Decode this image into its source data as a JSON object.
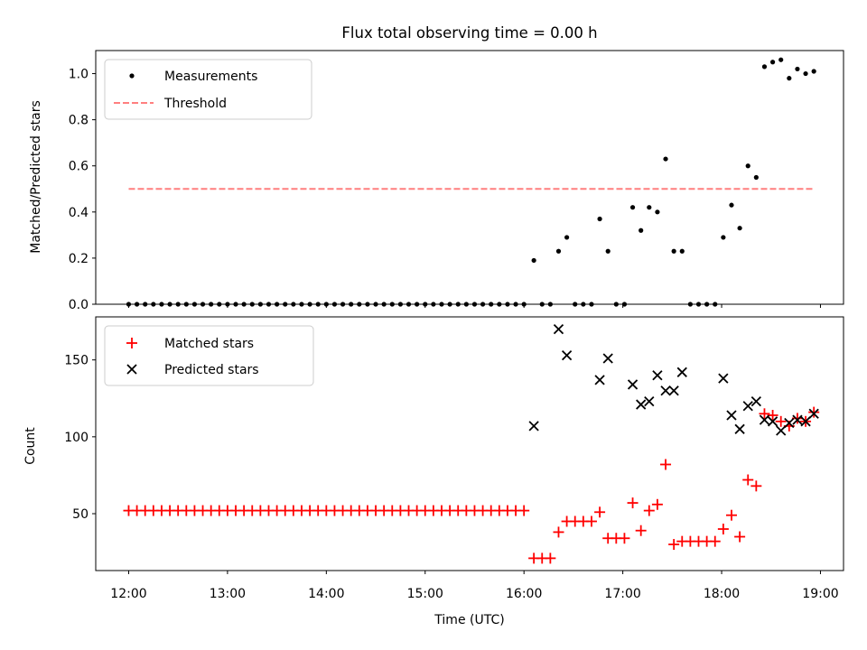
{
  "chart_data": [
    {
      "type": "scatter",
      "title": "Flux total observing time = 0.00 h",
      "ylabel": "Matched/Predicted stars",
      "xlim": [
        "11:40",
        "19:14"
      ],
      "ylim": [
        0,
        1.1
      ],
      "yticks": [
        "0.0",
        "0.2",
        "0.4",
        "0.6",
        "0.8",
        "1.0"
      ],
      "legend": {
        "placement": "top-left",
        "entries": [
          "Measurements",
          "Threshold"
        ]
      },
      "series": [
        {
          "name": "Measurements",
          "marker": "dot",
          "color": "#000000",
          "points": [
            [
              "12:00",
              0
            ],
            [
              "12:05",
              0
            ],
            [
              "12:10",
              0
            ],
            [
              "12:15",
              0
            ],
            [
              "12:20",
              0
            ],
            [
              "12:25",
              0
            ],
            [
              "12:30",
              0
            ],
            [
              "12:35",
              0
            ],
            [
              "12:40",
              0
            ],
            [
              "12:45",
              0
            ],
            [
              "12:50",
              0
            ],
            [
              "12:55",
              0
            ],
            [
              "13:00",
              0
            ],
            [
              "13:05",
              0
            ],
            [
              "13:10",
              0
            ],
            [
              "13:15",
              0
            ],
            [
              "13:20",
              0
            ],
            [
              "13:25",
              0
            ],
            [
              "13:30",
              0
            ],
            [
              "13:35",
              0
            ],
            [
              "13:40",
              0
            ],
            [
              "13:45",
              0
            ],
            [
              "13:50",
              0
            ],
            [
              "13:55",
              0
            ],
            [
              "14:00",
              0
            ],
            [
              "14:05",
              0
            ],
            [
              "14:10",
              0
            ],
            [
              "14:15",
              0
            ],
            [
              "14:20",
              0
            ],
            [
              "14:25",
              0
            ],
            [
              "14:30",
              0
            ],
            [
              "14:35",
              0
            ],
            [
              "14:40",
              0
            ],
            [
              "14:45",
              0
            ],
            [
              "14:50",
              0
            ],
            [
              "14:55",
              0
            ],
            [
              "15:00",
              0
            ],
            [
              "15:05",
              0
            ],
            [
              "15:10",
              0
            ],
            [
              "15:15",
              0
            ],
            [
              "15:20",
              0
            ],
            [
              "15:25",
              0
            ],
            [
              "15:30",
              0
            ],
            [
              "15:35",
              0
            ],
            [
              "15:40",
              0
            ],
            [
              "15:45",
              0
            ],
            [
              "15:50",
              0
            ],
            [
              "15:55",
              0
            ],
            [
              "16:00",
              0
            ],
            [
              "16:06",
              0.19
            ],
            [
              "16:11",
              0
            ],
            [
              "16:16",
              0
            ],
            [
              "16:21",
              0.23
            ],
            [
              "16:26",
              0.29
            ],
            [
              "16:31",
              0
            ],
            [
              "16:36",
              0
            ],
            [
              "16:41",
              0
            ],
            [
              "16:46",
              0.37
            ],
            [
              "16:51",
              0.23
            ],
            [
              "16:56",
              0
            ],
            [
              "17:01",
              0
            ],
            [
              "17:06",
              0.42
            ],
            [
              "17:11",
              0.32
            ],
            [
              "17:16",
              0.42
            ],
            [
              "17:21",
              0.4
            ],
            [
              "17:26",
              0.63
            ],
            [
              "17:31",
              0.23
            ],
            [
              "17:36",
              0.23
            ],
            [
              "17:41",
              0
            ],
            [
              "17:46",
              0
            ],
            [
              "17:51",
              0
            ],
            [
              "17:56",
              0
            ],
            [
              "18:01",
              0.29
            ],
            [
              "18:06",
              0.43
            ],
            [
              "18:11",
              0.33
            ],
            [
              "18:16",
              0.6
            ],
            [
              "18:21",
              0.55
            ],
            [
              "18:26",
              1.03
            ],
            [
              "18:31",
              1.05
            ],
            [
              "18:36",
              1.06
            ],
            [
              "18:41",
              0.98
            ],
            [
              "18:46",
              1.02
            ],
            [
              "18:51",
              1.0
            ],
            [
              "18:56",
              1.01
            ]
          ]
        },
        {
          "name": "Threshold",
          "style": "dashed",
          "color": "#ff7f7f",
          "points": [
            [
              "12:00",
              0.5
            ],
            [
              "18:56",
              0.5
            ]
          ]
        }
      ]
    },
    {
      "type": "scatter",
      "xlabel": "Time (UTC)",
      "ylabel": "Count",
      "xlim": [
        "11:40",
        "19:14"
      ],
      "ylim": [
        13,
        178
      ],
      "xticks": [
        "12:00",
        "13:00",
        "14:00",
        "15:00",
        "16:00",
        "17:00",
        "18:00",
        "19:00"
      ],
      "yticks": [
        "50",
        "100",
        "150"
      ],
      "legend": {
        "placement": "top-left",
        "entries": [
          "Matched stars",
          "Predicted stars"
        ]
      },
      "series": [
        {
          "name": "Matched stars",
          "marker": "plus",
          "color": "#ff0000",
          "points": [
            [
              "12:00",
              52
            ],
            [
              "12:05",
              52
            ],
            [
              "12:10",
              52
            ],
            [
              "12:15",
              52
            ],
            [
              "12:20",
              52
            ],
            [
              "12:25",
              52
            ],
            [
              "12:30",
              52
            ],
            [
              "12:35",
              52
            ],
            [
              "12:40",
              52
            ],
            [
              "12:45",
              52
            ],
            [
              "12:50",
              52
            ],
            [
              "12:55",
              52
            ],
            [
              "13:00",
              52
            ],
            [
              "13:05",
              52
            ],
            [
              "13:10",
              52
            ],
            [
              "13:15",
              52
            ],
            [
              "13:20",
              52
            ],
            [
              "13:25",
              52
            ],
            [
              "13:30",
              52
            ],
            [
              "13:35",
              52
            ],
            [
              "13:40",
              52
            ],
            [
              "13:45",
              52
            ],
            [
              "13:50",
              52
            ],
            [
              "13:55",
              52
            ],
            [
              "14:00",
              52
            ],
            [
              "14:05",
              52
            ],
            [
              "14:10",
              52
            ],
            [
              "14:15",
              52
            ],
            [
              "14:20",
              52
            ],
            [
              "14:25",
              52
            ],
            [
              "14:30",
              52
            ],
            [
              "14:35",
              52
            ],
            [
              "14:40",
              52
            ],
            [
              "14:45",
              52
            ],
            [
              "14:50",
              52
            ],
            [
              "14:55",
              52
            ],
            [
              "15:00",
              52
            ],
            [
              "15:05",
              52
            ],
            [
              "15:10",
              52
            ],
            [
              "15:15",
              52
            ],
            [
              "15:20",
              52
            ],
            [
              "15:25",
              52
            ],
            [
              "15:30",
              52
            ],
            [
              "15:35",
              52
            ],
            [
              "15:40",
              52
            ],
            [
              "15:45",
              52
            ],
            [
              "15:50",
              52
            ],
            [
              "15:55",
              52
            ],
            [
              "16:00",
              52
            ],
            [
              "16:06",
              21
            ],
            [
              "16:11",
              21
            ],
            [
              "16:16",
              21
            ],
            [
              "16:21",
              38
            ],
            [
              "16:26",
              45
            ],
            [
              "16:31",
              45
            ],
            [
              "16:36",
              45
            ],
            [
              "16:41",
              45
            ],
            [
              "16:46",
              51
            ],
            [
              "16:51",
              34
            ],
            [
              "16:56",
              34
            ],
            [
              "17:01",
              34
            ],
            [
              "17:06",
              57
            ],
            [
              "17:11",
              39
            ],
            [
              "17:16",
              52
            ],
            [
              "17:21",
              56
            ],
            [
              "17:26",
              82
            ],
            [
              "17:31",
              30
            ],
            [
              "17:36",
              32
            ],
            [
              "17:41",
              32
            ],
            [
              "17:46",
              32
            ],
            [
              "17:51",
              32
            ],
            [
              "17:56",
              32
            ],
            [
              "18:01",
              40
            ],
            [
              "18:06",
              49
            ],
            [
              "18:11",
              35
            ],
            [
              "18:16",
              72
            ],
            [
              "18:21",
              68
            ],
            [
              "18:26",
              115
            ],
            [
              "18:31",
              114
            ],
            [
              "18:36",
              110
            ],
            [
              "18:41",
              107
            ],
            [
              "18:46",
              112
            ],
            [
              "18:51",
              110
            ],
            [
              "18:56",
              116
            ]
          ]
        },
        {
          "name": "Predicted stars",
          "marker": "x",
          "color": "#000000",
          "points": [
            [
              "16:06",
              107
            ],
            [
              "16:21",
              170
            ],
            [
              "16:26",
              153
            ],
            [
              "16:46",
              137
            ],
            [
              "16:51",
              151
            ],
            [
              "17:06",
              134
            ],
            [
              "17:11",
              121
            ],
            [
              "17:16",
              123
            ],
            [
              "17:21",
              140
            ],
            [
              "17:26",
              130
            ],
            [
              "17:31",
              130
            ],
            [
              "17:36",
              142
            ],
            [
              "18:01",
              138
            ],
            [
              "18:06",
              114
            ],
            [
              "18:11",
              105
            ],
            [
              "18:16",
              120
            ],
            [
              "18:21",
              123
            ],
            [
              "18:26",
              111
            ],
            [
              "18:31",
              110
            ],
            [
              "18:36",
              104
            ],
            [
              "18:41",
              109
            ],
            [
              "18:46",
              111
            ],
            [
              "18:51",
              110
            ],
            [
              "18:56",
              115
            ]
          ]
        }
      ]
    }
  ]
}
